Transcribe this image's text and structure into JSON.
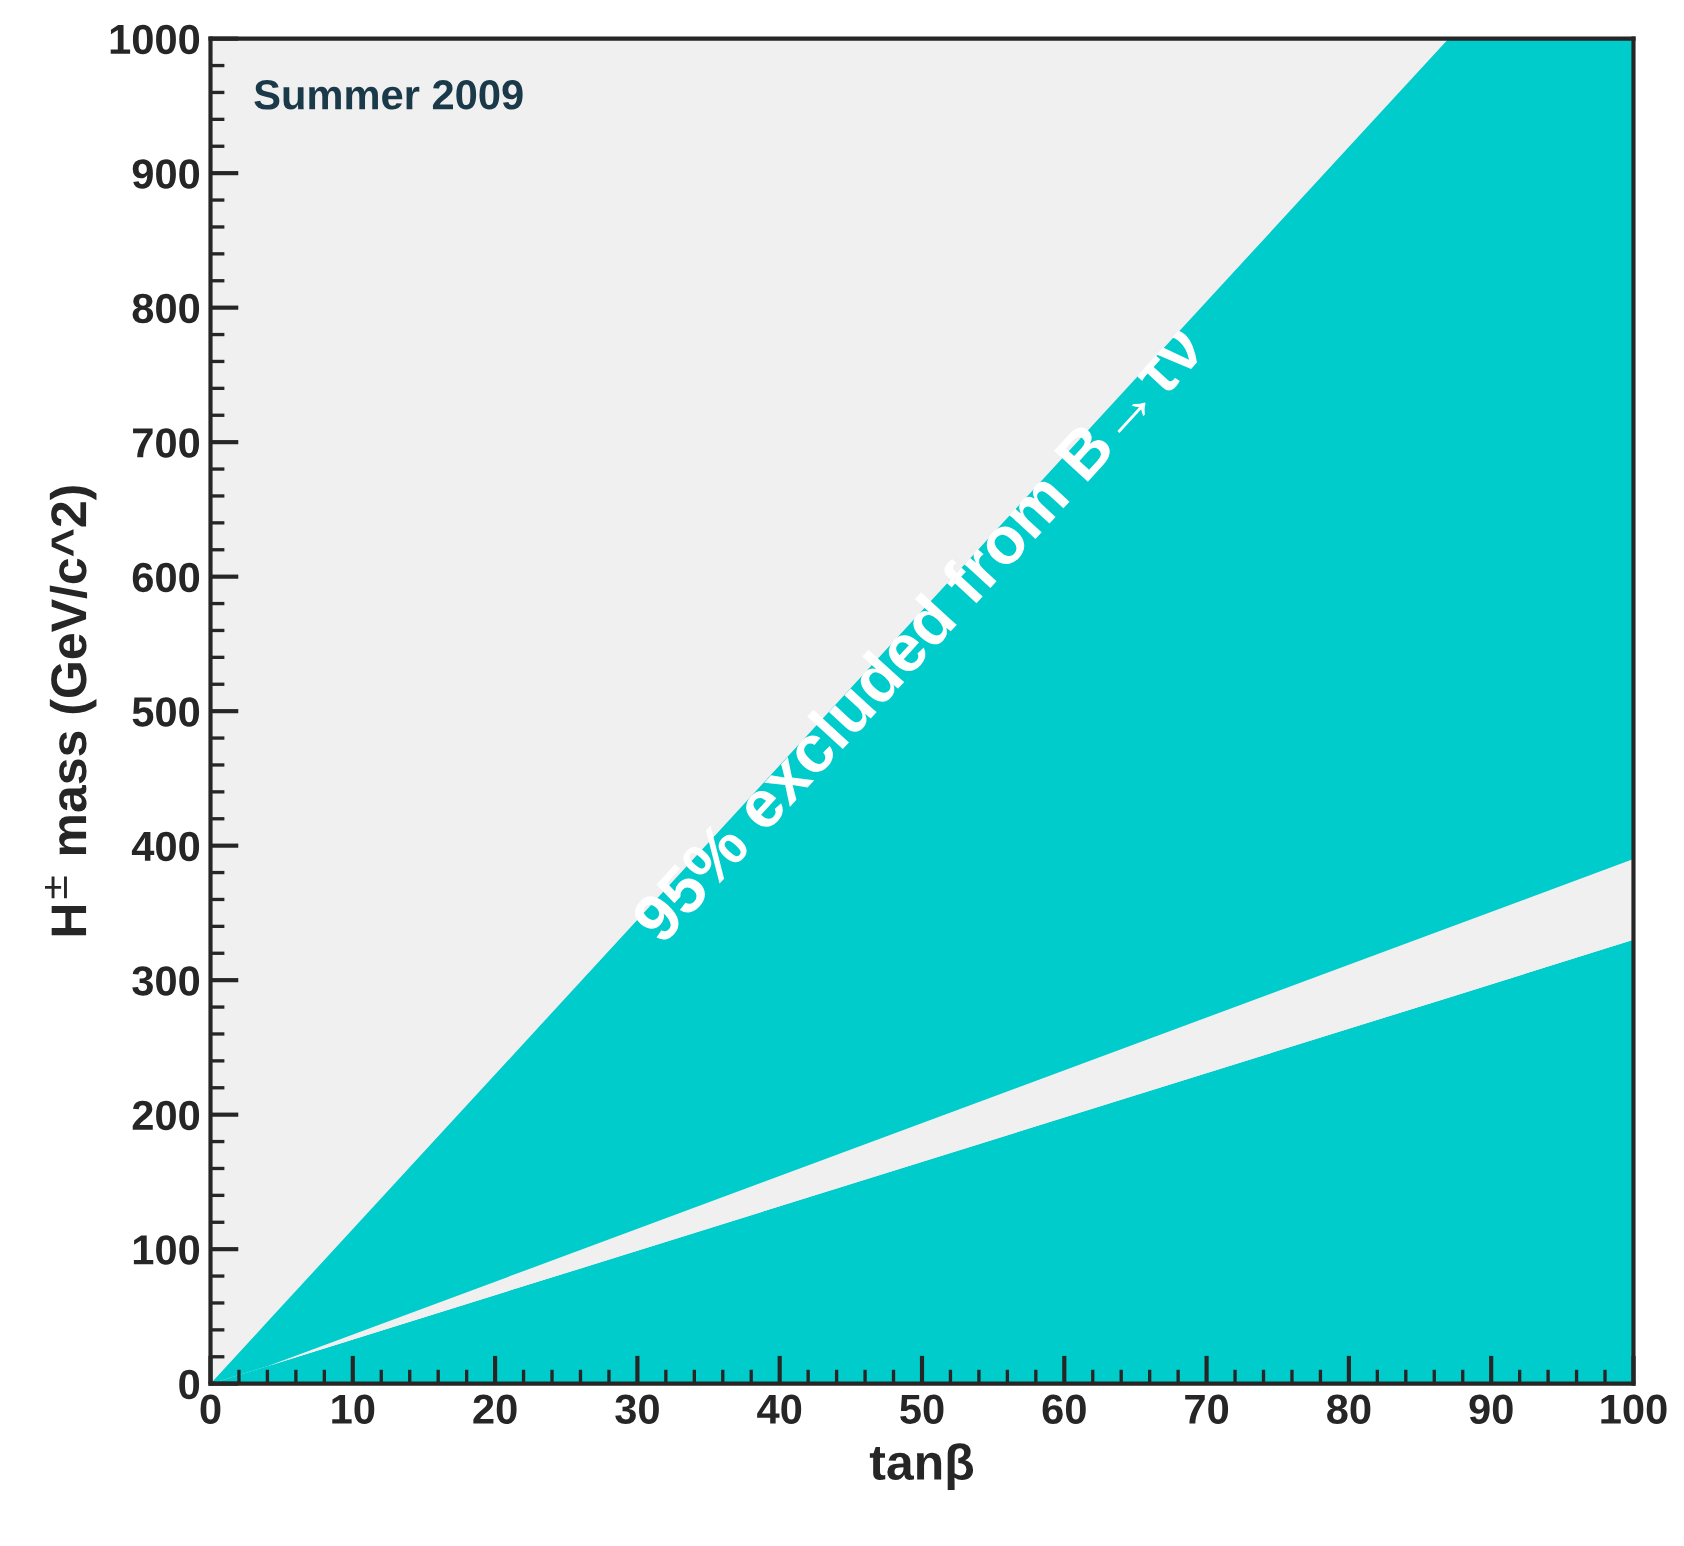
{
  "chart_data": {
    "type": "area",
    "stacked": true,
    "xlabel": "tanβ",
    "ylabel": "H$^{±}$ mass (GeV/c^2)",
    "x": [
      0,
      4,
      87,
      100
    ],
    "series": [
      {
        "color": "#00cccc",
        "values": [
          0,
          13,
          287,
          330
        ]
      },
      {
        "color": "#f0f0f0",
        "values": [
          0,
          0,
          52,
          60
        ]
      },
      {
        "color": "#00cccc",
        "values": [
          0,
          33,
          661,
          610
        ]
      }
    ],
    "xlim": [
      0,
      100
    ],
    "ylim": [
      0,
      1000
    ],
    "xticks": [
      0,
      10,
      20,
      30,
      40,
      50,
      60,
      70,
      80,
      90,
      100
    ],
    "yticks": [
      0,
      100,
      200,
      300,
      400,
      500,
      600,
      700,
      800,
      900,
      1000
    ],
    "grid": false,
    "legend": false,
    "annotations": [
      "Summer 2009",
      "95% excluded from B→τν"
    ]
  }
}
